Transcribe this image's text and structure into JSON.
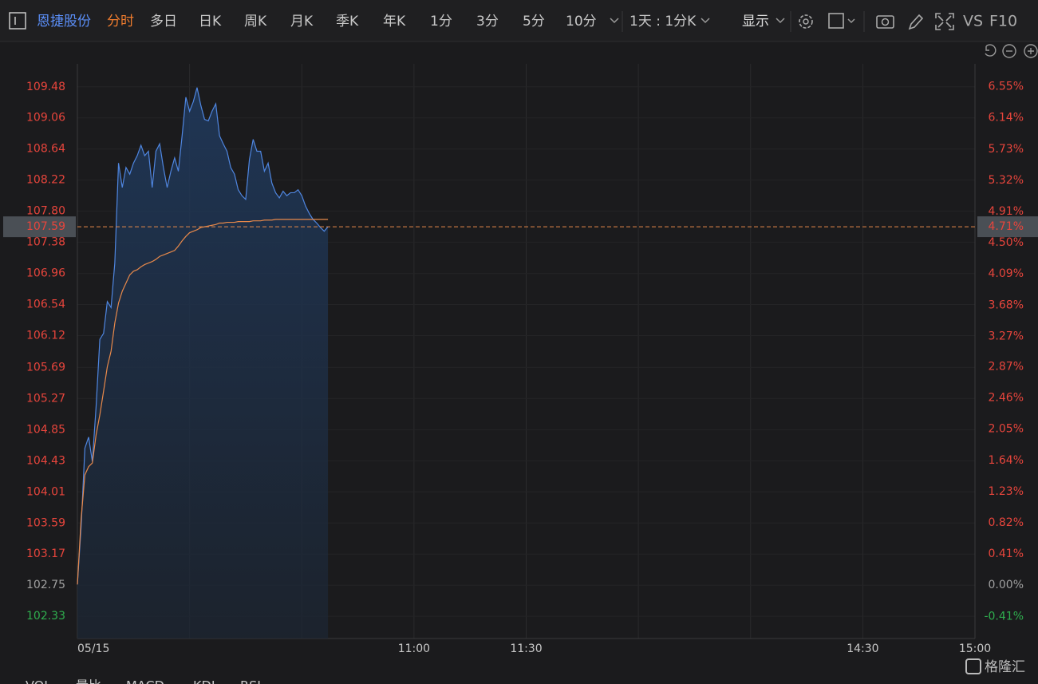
{
  "toolbar": {
    "stock_name": "恩捷股份",
    "tabs": [
      "分时",
      "多日",
      "日K",
      "周K",
      "月K",
      "季K",
      "年K",
      "1分",
      "3分",
      "5分",
      "10分"
    ],
    "active_tab": 0,
    "period": "1天 : 1分K",
    "display": "显示",
    "vs": "VS",
    "f10": "F10"
  },
  "indicator_tabs": [
    "VOL",
    "量比",
    "MACD",
    "KDJ",
    "RSI"
  ],
  "watermark": "格隆汇",
  "chart_data": {
    "type": "line",
    "x": [
      0,
      1,
      2,
      3,
      4,
      5,
      6,
      7,
      8,
      9,
      10,
      11,
      12,
      13,
      14,
      15,
      16,
      17,
      18,
      19,
      20,
      21,
      22,
      23,
      24,
      25,
      26,
      27,
      28,
      29,
      30,
      31,
      32,
      33,
      34,
      35,
      36,
      37,
      38,
      39,
      40,
      41,
      42,
      43,
      44,
      45,
      46,
      47,
      48,
      49,
      50,
      51,
      52,
      53,
      54,
      55,
      56,
      57,
      58,
      59,
      60,
      61,
      62,
      63,
      64,
      65,
      66,
      67
    ],
    "series": [
      {
        "color": "#4f86e0",
        "values": [
          102.76,
          103.54,
          104.6,
          104.75,
          104.42,
          105.16,
          106.07,
          106.15,
          106.58,
          106.5,
          107.1,
          108.45,
          108.12,
          108.39,
          108.3,
          108.45,
          108.55,
          108.69,
          108.55,
          108.61,
          108.12,
          108.61,
          108.71,
          108.39,
          108.12,
          108.34,
          108.52,
          108.34,
          108.82,
          109.34,
          109.15,
          109.28,
          109.47,
          109.23,
          109.04,
          109.02,
          109.15,
          109.25,
          108.82,
          108.71,
          108.61,
          108.39,
          108.3,
          108.09,
          108.01,
          107.96,
          108.5,
          108.77,
          108.61,
          108.61,
          108.34,
          108.45,
          108.18,
          108.05,
          107.98,
          108.07,
          108.01,
          108.05,
          108.05,
          108.09,
          108.01,
          107.87,
          107.77,
          107.69,
          107.64,
          107.58,
          107.53,
          107.59
        ]
      },
      {
        "color": "#e8894a",
        "values": [
          102.76,
          103.65,
          104.24,
          104.35,
          104.4,
          104.78,
          105.05,
          105.37,
          105.7,
          105.91,
          106.29,
          106.56,
          106.72,
          106.83,
          106.94,
          106.99,
          107.01,
          107.05,
          107.08,
          107.1,
          107.12,
          107.15,
          107.19,
          107.21,
          107.23,
          107.25,
          107.27,
          107.33,
          107.4,
          107.46,
          107.51,
          107.53,
          107.55,
          107.58,
          107.59,
          107.6,
          107.61,
          107.62,
          107.64,
          107.64,
          107.65,
          107.65,
          107.65,
          107.66,
          107.66,
          107.66,
          107.66,
          107.67,
          107.67,
          107.67,
          107.68,
          107.68,
          107.68,
          107.69,
          107.69,
          107.69,
          107.69,
          107.69,
          107.69,
          107.69,
          107.69,
          107.69,
          107.69,
          107.69,
          107.69,
          107.69,
          107.69,
          107.69
        ]
      }
    ],
    "xlim": [
      0,
      240
    ],
    "xticks": [
      {
        "value": 0,
        "label": "05/15"
      },
      {
        "value": 30,
        "label": null
      },
      {
        "value": 60,
        "label": null
      },
      {
        "value": 90,
        "label": "11:00"
      },
      {
        "value": 120,
        "label": "11:30"
      },
      {
        "value": 150,
        "label": null
      },
      {
        "value": 180,
        "label": null
      },
      {
        "value": 210,
        "label": "14:30"
      },
      {
        "value": 240,
        "label": "15:00"
      }
    ],
    "ylim": [
      102.03,
      109.79
    ],
    "yticks": [
      109.48,
      109.06,
      108.64,
      108.22,
      {
        "value": 107.8,
        "label": "107.80"
      },
      107.38,
      106.96,
      106.54,
      106.12,
      105.69,
      105.27,
      104.85,
      104.43,
      104.01,
      103.59,
      103.17,
      102.75,
      102.33
    ],
    "y2lim": [
      -0.7,
      6.85
    ],
    "y2ticks": [
      {
        "value": 6.55,
        "label": "6.55%"
      },
      {
        "value": 6.14,
        "label": "6.14%"
      },
      {
        "value": 5.73,
        "label": "5.73%"
      },
      {
        "value": 5.32,
        "label": "5.32%"
      },
      {
        "value": 4.91,
        "label": "4.91%"
      },
      {
        "value": 4.5,
        "label": "4.50%"
      },
      {
        "value": 4.09,
        "label": "4.09%"
      },
      {
        "value": 3.68,
        "label": "3.68%"
      },
      {
        "value": 3.27,
        "label": "3.27%"
      },
      {
        "value": 2.87,
        "label": "2.87%"
      },
      {
        "value": 2.46,
        "label": "2.46%"
      },
      {
        "value": 2.05,
        "label": "2.05%"
      },
      {
        "value": 1.64,
        "label": "1.64%"
      },
      {
        "value": 1.23,
        "label": "1.23%"
      },
      {
        "value": 0.82,
        "label": "0.82%"
      },
      {
        "value": 0.41,
        "label": "0.41%"
      },
      {
        "value": 0,
        "label": "0.00%"
      },
      {
        "value": -0.41,
        "label": "-0.41%"
      }
    ],
    "last_price": 107.59,
    "last_change": {
      "value": 4.71,
      "label": "4.71%"
    },
    "grid": true
  }
}
